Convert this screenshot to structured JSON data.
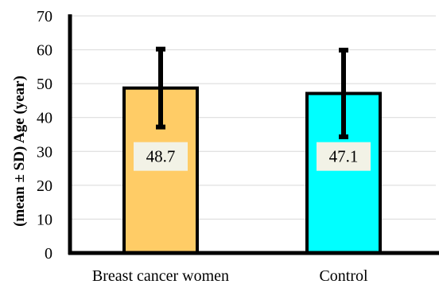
{
  "chart_data": {
    "type": "bar",
    "categories": [
      "Breast cancer women",
      "Control"
    ],
    "values": [
      48.7,
      47.1
    ],
    "errors": [
      11.5,
      12.8
    ],
    "data_labels": [
      "48.7",
      "47.1"
    ],
    "bar_colors": [
      "#FFCC66",
      "#00FFFF"
    ],
    "title": "",
    "xlabel": "",
    "ylabel": "(mean ± SD) Age (year)",
    "ylim": [
      0,
      70
    ],
    "yticks": [
      0,
      10,
      20,
      30,
      40,
      50,
      60,
      70
    ],
    "grid": true,
    "legend": "none"
  }
}
